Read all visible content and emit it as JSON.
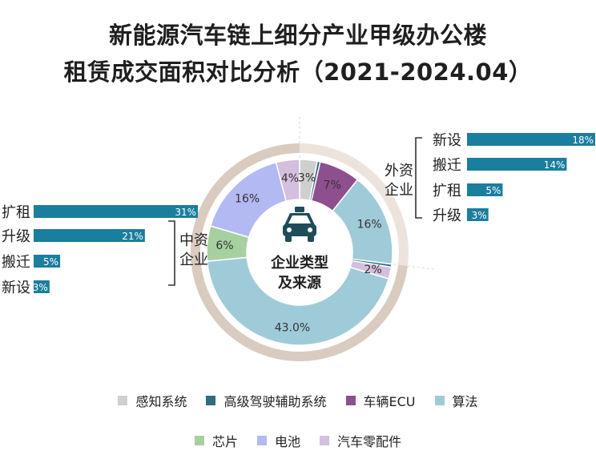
{
  "title": {
    "line1": "新能源汽车链上细分产业甲级办公楼",
    "line2": "租赁成交面积对比分析（2021-2024.04）"
  },
  "center": {
    "line1": "企业类型",
    "line2": "及来源",
    "icon": "taxi-icon"
  },
  "colors": {
    "outer_ring_domestic": "#d9cbbf",
    "outer_ring_foreign": "#ece4dc",
    "bar": "#1a7e9e",
    "bracket": "#333333"
  },
  "chart_data": [
    {
      "type": "pie",
      "variant": "donut",
      "slices": [
        {
          "name": "感知系统",
          "value": 3,
          "label": "3%",
          "color": "#cfcfcf"
        },
        {
          "name": "高级驾驶辅助系统",
          "value": 0.5,
          "label": "",
          "color": "#2d6e7e"
        },
        {
          "name": "车辆ECU",
          "value": 7,
          "label": "7%",
          "color": "#8e4f8e"
        },
        {
          "name": "算法",
          "value": 16,
          "label": "16%",
          "color": "#9fcbd9"
        },
        {
          "name": "高级驾驶辅助系统",
          "value": 0.5,
          "label": "",
          "color": "#2d6e7e"
        },
        {
          "name": "汽车零配件",
          "value": 2,
          "label": "2%",
          "color": "#d4bfde"
        },
        {
          "name": "算法",
          "value": 43.0,
          "label": "43.0%",
          "color": "#9fcbd9"
        },
        {
          "name": "芯片",
          "value": 6,
          "label": "6%",
          "color": "#a7d0a0"
        },
        {
          "name": "电池",
          "value": 16,
          "label": "16%",
          "color": "#b3b9f2"
        },
        {
          "name": "汽车零配件",
          "value": 4,
          "label": "4%",
          "color": "#d4bfde"
        }
      ],
      "outer_ring": [
        {
          "name": "中资企业",
          "share": 73
        },
        {
          "name": "外资企业",
          "share": 27
        }
      ]
    },
    {
      "type": "bar",
      "orientation": "horizontal",
      "group": "中资企业",
      "categories": [
        "扩租",
        "升级",
        "搬迁",
        "新设"
      ],
      "values": [
        31,
        21,
        5,
        3
      ],
      "labels": [
        "31%",
        "21%",
        "5%",
        "3%"
      ]
    },
    {
      "type": "bar",
      "orientation": "horizontal",
      "group": "外资企业",
      "categories": [
        "新设",
        "搬迁",
        "扩租",
        "升级"
      ],
      "values": [
        18,
        14,
        5,
        3
      ],
      "labels": [
        "18%",
        "14%",
        "5%",
        "3%"
      ]
    }
  ],
  "groups": {
    "domestic": {
      "line1": "中资",
      "line2": "企业"
    },
    "foreign": {
      "line1": "外资",
      "line2": "企业"
    }
  },
  "legend": {
    "row1": [
      {
        "label": "感知系统",
        "color": "#cfcfcf"
      },
      {
        "label": "高级驾驶辅助系统",
        "color": "#2d6e7e"
      },
      {
        "label": "车辆ECU",
        "color": "#8e4f8e"
      },
      {
        "label": "算法",
        "color": "#9fcbd9"
      }
    ],
    "row2": [
      {
        "label": "芯片",
        "color": "#a7d0a0"
      },
      {
        "label": "电池",
        "color": "#b3b9f2"
      },
      {
        "label": "汽车零配件",
        "color": "#d4bfde"
      }
    ]
  }
}
